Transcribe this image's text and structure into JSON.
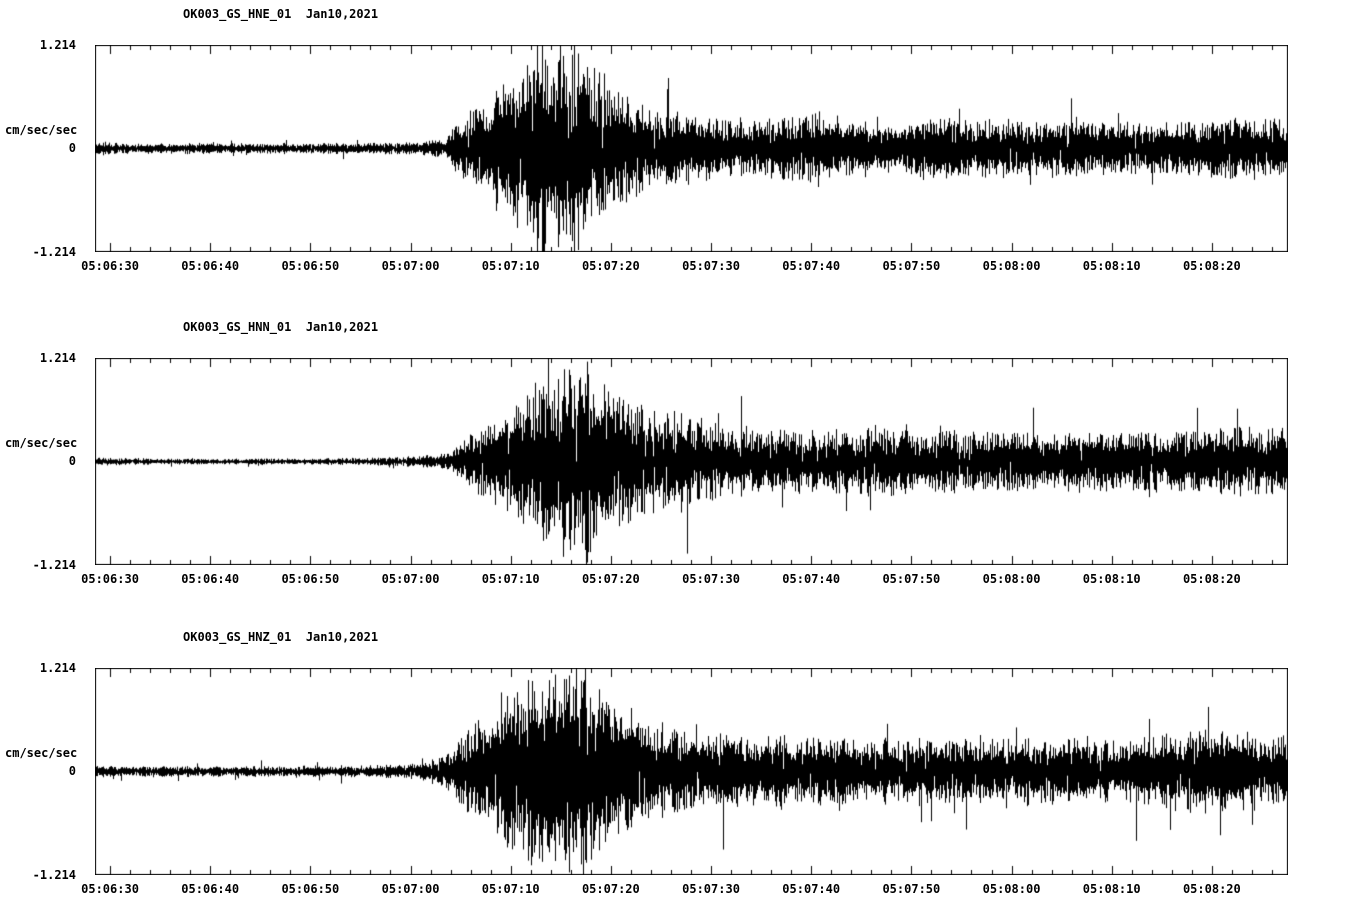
{
  "page": {
    "background": "#ffffff",
    "trace_color": "#000000"
  },
  "chart_data": [
    {
      "type": "line",
      "title": "OK003_GS_HNE_01  Jan10,2021",
      "station": "OK003_GS_HNE_01",
      "date": "Jan10,2021",
      "ylabel": "cm/sec/sec",
      "yticks": [
        "1.214",
        "0",
        "-1.214"
      ],
      "ylim": [
        -1.214,
        1.214
      ],
      "x_window_seconds": [
        28.5,
        147.5
      ],
      "xticks_seconds": [
        30,
        40,
        50,
        60,
        70,
        80,
        90,
        100,
        110,
        120,
        130,
        140
      ],
      "xtick_labels": [
        "05:06:30",
        "05:06:40",
        "05:06:50",
        "05:07:00",
        "05:07:10",
        "05:07:20",
        "05:07:30",
        "05:07:40",
        "05:07:50",
        "05:08:00",
        "05:08:10",
        "05:08:20"
      ],
      "seed": 11,
      "envelope": [
        [
          28.5,
          0.07
        ],
        [
          31,
          0.05
        ],
        [
          45,
          0.05
        ],
        [
          58,
          0.055
        ],
        [
          62,
          0.07
        ],
        [
          63.5,
          0.1
        ],
        [
          64.5,
          0.22
        ],
        [
          66,
          0.38
        ],
        [
          68,
          0.5
        ],
        [
          70,
          0.75
        ],
        [
          71.5,
          0.95
        ],
        [
          72.8,
          1.15
        ],
        [
          74,
          0.8
        ],
        [
          75.5,
          1.0
        ],
        [
          77,
          0.9
        ],
        [
          78.5,
          0.75
        ],
        [
          80,
          0.6
        ],
        [
          82,
          0.5
        ],
        [
          84,
          0.42
        ],
        [
          87,
          0.36
        ],
        [
          90,
          0.3
        ],
        [
          94,
          0.27
        ],
        [
          98,
          0.3
        ],
        [
          101,
          0.34
        ],
        [
          104,
          0.27
        ],
        [
          108,
          0.25
        ],
        [
          112,
          0.3
        ],
        [
          116,
          0.26
        ],
        [
          120,
          0.28
        ],
        [
          124,
          0.25
        ],
        [
          128,
          0.27
        ],
        [
          132,
          0.24
        ],
        [
          136,
          0.26
        ],
        [
          140,
          0.27
        ],
        [
          144,
          0.3
        ],
        [
          147.5,
          0.3
        ]
      ]
    },
    {
      "type": "line",
      "title": "OK003_GS_HNN_01  Jan10,2021",
      "station": "OK003_GS_HNN_01",
      "date": "Jan10,2021",
      "ylabel": "cm/sec/sec",
      "yticks": [
        "1.214",
        "0",
        "-1.214"
      ],
      "ylim": [
        -1.214,
        1.214
      ],
      "x_window_seconds": [
        28.5,
        147.5
      ],
      "xticks_seconds": [
        30,
        40,
        50,
        60,
        70,
        80,
        90,
        100,
        110,
        120,
        130,
        140
      ],
      "xtick_labels": [
        "05:06:30",
        "05:06:40",
        "05:06:50",
        "05:07:00",
        "05:07:10",
        "05:07:20",
        "05:07:30",
        "05:07:40",
        "05:07:50",
        "05:08:00",
        "05:08:10",
        "05:08:20"
      ],
      "seed": 23,
      "envelope": [
        [
          28.5,
          0.04
        ],
        [
          35,
          0.028
        ],
        [
          50,
          0.028
        ],
        [
          58,
          0.04
        ],
        [
          62,
          0.06
        ],
        [
          64,
          0.1
        ],
        [
          65.5,
          0.22
        ],
        [
          67,
          0.35
        ],
        [
          69,
          0.45
        ],
        [
          71,
          0.6
        ],
        [
          73,
          0.8
        ],
        [
          75,
          0.95
        ],
        [
          76.5,
          0.85
        ],
        [
          78,
          1.05
        ],
        [
          79.5,
          0.8
        ],
        [
          81,
          0.65
        ],
        [
          83,
          0.55
        ],
        [
          85,
          0.45
        ],
        [
          87,
          0.5
        ],
        [
          89,
          0.4
        ],
        [
          92,
          0.32
        ],
        [
          95,
          0.3
        ],
        [
          98,
          0.33
        ],
        [
          101,
          0.28
        ],
        [
          104,
          0.3
        ],
        [
          107,
          0.35
        ],
        [
          110,
          0.28
        ],
        [
          113,
          0.3
        ],
        [
          116,
          0.27
        ],
        [
          120,
          0.3
        ],
        [
          124,
          0.27
        ],
        [
          128,
          0.3
        ],
        [
          132,
          0.27
        ],
        [
          136,
          0.28
        ],
        [
          140,
          0.3
        ],
        [
          144,
          0.32
        ],
        [
          147.5,
          0.3
        ]
      ]
    },
    {
      "type": "line",
      "title": "OK003_GS_HNZ_01  Jan10,2021",
      "station": "OK003_GS_HNZ_01",
      "date": "Jan10,2021",
      "ylabel": "cm/sec/sec",
      "yticks": [
        "1.214",
        "0",
        "-1.214"
      ],
      "ylim": [
        -1.214,
        1.214
      ],
      "x_window_seconds": [
        28.5,
        147.5
      ],
      "xticks_seconds": [
        30,
        40,
        50,
        60,
        70,
        80,
        90,
        100,
        110,
        120,
        130,
        140
      ],
      "xtick_labels": [
        "05:06:30",
        "05:06:40",
        "05:06:50",
        "05:07:00",
        "05:07:10",
        "05:07:20",
        "05:07:30",
        "05:07:40",
        "05:07:50",
        "05:08:00",
        "05:08:10",
        "05:08:20"
      ],
      "seed": 37,
      "envelope": [
        [
          28.5,
          0.06
        ],
        [
          31,
          0.05
        ],
        [
          45,
          0.05
        ],
        [
          58,
          0.06
        ],
        [
          61,
          0.08
        ],
        [
          63,
          0.15
        ],
        [
          64.5,
          0.3
        ],
        [
          66,
          0.45
        ],
        [
          68,
          0.6
        ],
        [
          70,
          0.85
        ],
        [
          71.5,
          1.0
        ],
        [
          73,
          0.9
        ],
        [
          74.5,
          1.05
        ],
        [
          76,
          0.95
        ],
        [
          77.5,
          1.1
        ],
        [
          79,
          0.85
        ],
        [
          81,
          0.7
        ],
        [
          83,
          0.55
        ],
        [
          85,
          0.45
        ],
        [
          88,
          0.4
        ],
        [
          91,
          0.36
        ],
        [
          94,
          0.33
        ],
        [
          97,
          0.36
        ],
        [
          100,
          0.32
        ],
        [
          103,
          0.35
        ],
        [
          106,
          0.3
        ],
        [
          109,
          0.33
        ],
        [
          112,
          0.3
        ],
        [
          115,
          0.32
        ],
        [
          118,
          0.3
        ],
        [
          121,
          0.32
        ],
        [
          124,
          0.3
        ],
        [
          127,
          0.32
        ],
        [
          130,
          0.3
        ],
        [
          133,
          0.34
        ],
        [
          136,
          0.38
        ],
        [
          139,
          0.42
        ],
        [
          142,
          0.4
        ],
        [
          145,
          0.34
        ],
        [
          147.5,
          0.32
        ]
      ]
    }
  ]
}
